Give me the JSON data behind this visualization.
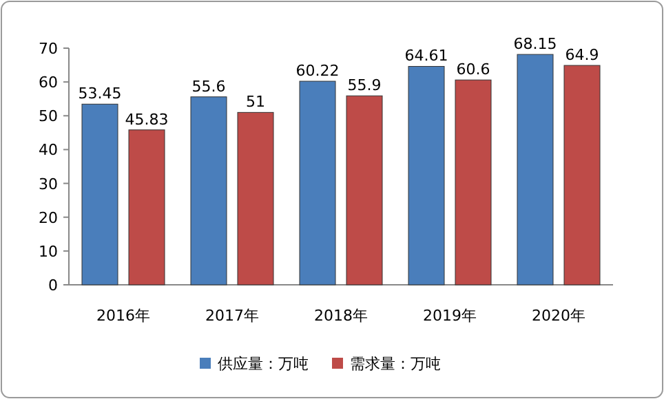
{
  "chart_data": {
    "type": "bar",
    "categories": [
      "2016年",
      "2017年",
      "2018年",
      "2019年",
      "2020年"
    ],
    "series": [
      {
        "name": "供应量：万吨",
        "color": "#4a7ebb",
        "values": [
          53.45,
          55.6,
          60.22,
          64.61,
          68.15
        ]
      },
      {
        "name": "需求量：万吨",
        "color": "#be4b48",
        "values": [
          45.83,
          51,
          55.9,
          60.6,
          64.9
        ]
      }
    ],
    "ylim": [
      0,
      70
    ],
    "yticks": [
      0,
      10,
      20,
      30,
      40,
      50,
      60,
      70
    ],
    "data_labels": true,
    "legend": "bottom",
    "grid": false
  }
}
